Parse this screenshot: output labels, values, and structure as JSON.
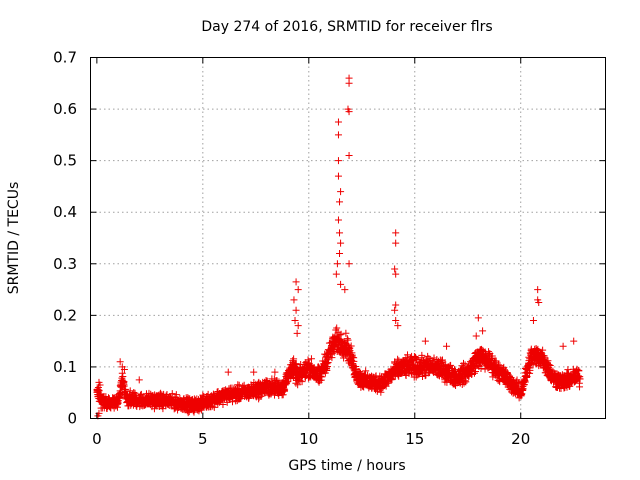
{
  "chart_data": {
    "type": "scatter",
    "title": "Day 274 of 2016, SRMTID for receiver flrs",
    "xlabel": "GPS time / hours",
    "ylabel": "SRMTID / TECUs",
    "xlim": [
      -0.3,
      24
    ],
    "ylim": [
      0,
      0.7
    ],
    "grid": true,
    "marker": "+",
    "marker_color": "#ee0000",
    "x_ticks": [
      {
        "value": 0,
        "label": "0"
      },
      {
        "value": 5,
        "label": "5"
      },
      {
        "value": 10,
        "label": "10"
      },
      {
        "value": 15,
        "label": "15"
      },
      {
        "value": 20,
        "label": "20"
      }
    ],
    "y_ticks": [
      {
        "value": 0,
        "label": "0"
      },
      {
        "value": 0.1,
        "label": "0.1"
      },
      {
        "value": 0.2,
        "label": "0.2"
      },
      {
        "value": 0.3,
        "label": "0.3"
      },
      {
        "value": 0.4,
        "label": "0.4"
      },
      {
        "value": 0.5,
        "label": "0.5"
      },
      {
        "value": 0.6,
        "label": "0.6"
      },
      {
        "value": 0.7,
        "label": "0.7"
      }
    ],
    "series": [
      {
        "name": "SRMTID",
        "baseline": {
          "x": [
            0,
            0.3,
            1.0,
            1.2,
            1.4,
            2.0,
            3.0,
            4.0,
            4.5,
            5.0,
            6.0,
            7.0,
            8.0,
            8.8,
            9.2,
            9.5,
            10.0,
            10.5,
            11.0,
            11.3,
            11.8,
            12.3,
            12.8,
            13.5,
            14.0,
            14.5,
            15.0,
            16.0,
            17.0,
            17.5,
            18.0,
            18.5,
            19.0,
            19.5,
            20.0,
            20.5,
            21.0,
            21.5,
            22.0,
            22.5,
            22.8
          ],
          "y": [
            0.05,
            0.03,
            0.03,
            0.08,
            0.04,
            0.035,
            0.035,
            0.03,
            0.025,
            0.03,
            0.045,
            0.05,
            0.06,
            0.06,
            0.1,
            0.08,
            0.1,
            0.08,
            0.13,
            0.15,
            0.14,
            0.08,
            0.07,
            0.07,
            0.09,
            0.1,
            0.1,
            0.1,
            0.08,
            0.09,
            0.12,
            0.11,
            0.09,
            0.07,
            0.05,
            0.12,
            0.12,
            0.08,
            0.07,
            0.08,
            0.08
          ],
          "scatter_spread": 0.03,
          "samples_per_hour": 120
        },
        "highlighted_points": [
          [
            11.9,
            0.66
          ],
          [
            11.9,
            0.65
          ],
          [
            11.85,
            0.6
          ],
          [
            11.9,
            0.595
          ],
          [
            11.4,
            0.575
          ],
          [
            11.4,
            0.55
          ],
          [
            11.9,
            0.51
          ],
          [
            11.4,
            0.5
          ],
          [
            11.4,
            0.47
          ],
          [
            11.5,
            0.44
          ],
          [
            11.45,
            0.42
          ],
          [
            11.4,
            0.385
          ],
          [
            11.45,
            0.36
          ],
          [
            11.5,
            0.34
          ],
          [
            11.45,
            0.32
          ],
          [
            11.35,
            0.3
          ],
          [
            11.9,
            0.3
          ],
          [
            11.3,
            0.28
          ],
          [
            11.5,
            0.26
          ],
          [
            11.7,
            0.25
          ],
          [
            14.1,
            0.36
          ],
          [
            14.1,
            0.34
          ],
          [
            14.05,
            0.29
          ],
          [
            14.1,
            0.28
          ],
          [
            14.1,
            0.22
          ],
          [
            14.05,
            0.21
          ],
          [
            14.2,
            0.18
          ],
          [
            14.1,
            0.19
          ],
          [
            9.4,
            0.265
          ],
          [
            9.5,
            0.25
          ],
          [
            9.3,
            0.23
          ],
          [
            9.4,
            0.21
          ],
          [
            9.35,
            0.19
          ],
          [
            9.5,
            0.18
          ],
          [
            9.45,
            0.165
          ],
          [
            20.8,
            0.25
          ],
          [
            20.8,
            0.23
          ],
          [
            20.85,
            0.225
          ],
          [
            20.6,
            0.19
          ],
          [
            18.0,
            0.195
          ],
          [
            18.2,
            0.17
          ],
          [
            17.9,
            0.16
          ],
          [
            22.0,
            0.14
          ],
          [
            22.5,
            0.15
          ],
          [
            15.5,
            0.15
          ],
          [
            16.5,
            0.14
          ],
          [
            0.1,
            0.07
          ],
          [
            0.15,
            0.065
          ],
          [
            0.05,
            0.005
          ],
          [
            0.1,
            0.01
          ],
          [
            0.2,
            0.02
          ],
          [
            1.1,
            0.11
          ],
          [
            1.2,
            0.1
          ],
          [
            1.3,
            0.095
          ],
          [
            6.2,
            0.09
          ],
          [
            7.4,
            0.09
          ],
          [
            8.4,
            0.09
          ],
          [
            2.0,
            0.075
          ]
        ]
      }
    ]
  }
}
